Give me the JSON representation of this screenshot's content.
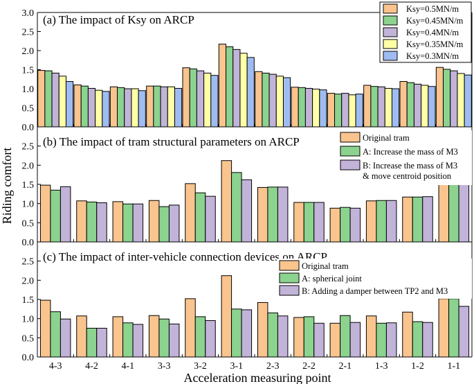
{
  "colors": {
    "orange": "#F9C48E",
    "green": "#8BD38F",
    "purple": "#C2B3D9",
    "yellow": "#FFFFA6",
    "blue": "#9FBCF2",
    "stroke": "#000000"
  },
  "chart_data": [
    {
      "type": "bar",
      "title": "(a) The impact of Ksy on ARCP",
      "categories": [
        "4-3",
        "4-2",
        "4-1",
        "3-3",
        "3-2",
        "3-1",
        "2-3",
        "2-2",
        "2-1",
        "1-3",
        "1-2",
        "1-1"
      ],
      "ylim": [
        0,
        3.0
      ],
      "yticks": [
        "0.0",
        "0.5",
        "1.0",
        "1.5",
        "2.0",
        "2.5",
        "3.0"
      ],
      "legend_position": "top-right",
      "series": [
        {
          "name": "Ksy=0.5MN/m",
          "color": "orange",
          "values": [
            1.48,
            1.1,
            1.05,
            1.07,
            1.55,
            2.17,
            1.45,
            1.04,
            0.88,
            1.09,
            1.19,
            1.56
          ]
        },
        {
          "name": "Ksy=0.45MN/m",
          "color": "green",
          "values": [
            1.47,
            1.07,
            1.03,
            1.07,
            1.52,
            2.1,
            1.41,
            1.03,
            0.86,
            1.06,
            1.16,
            1.51
          ]
        },
        {
          "name": "Ksy=0.4MN/m",
          "color": "purple",
          "values": [
            1.41,
            1.01,
            1.0,
            1.05,
            1.47,
            2.03,
            1.38,
            1.01,
            0.88,
            1.05,
            1.12,
            1.47
          ]
        },
        {
          "name": "Ksy=0.35MN/m",
          "color": "yellow",
          "values": [
            1.33,
            0.96,
            1.0,
            1.05,
            1.41,
            1.93,
            1.33,
            0.99,
            0.84,
            1.01,
            1.09,
            1.4
          ]
        },
        {
          "name": "Ksy=0.3MN/m",
          "color": "blue",
          "values": [
            1.19,
            0.93,
            0.95,
            1.01,
            1.35,
            1.82,
            1.29,
            0.97,
            0.86,
            1.0,
            1.06,
            1.36
          ]
        }
      ]
    },
    {
      "type": "bar",
      "title": "(b) The impact of  tram structural parameters on ARCP",
      "categories": [
        "4-3",
        "4-2",
        "4-1",
        "3-3",
        "3-2",
        "3-1",
        "2-3",
        "2-2",
        "2-1",
        "1-3",
        "1-2",
        "1-1"
      ],
      "ylim": [
        0,
        3.0
      ],
      "yticks": [
        "0.0",
        "0.5",
        "1.0",
        "1.5",
        "2.0",
        "2.5"
      ],
      "legend_position": "top-right",
      "series": [
        {
          "name": "Original tram",
          "label_lines": [
            "Original tram"
          ],
          "color": "orange",
          "values": [
            1.48,
            1.07,
            1.05,
            1.08,
            1.52,
            2.12,
            1.42,
            1.03,
            0.88,
            1.07,
            1.17,
            1.52
          ]
        },
        {
          "name": "A: Increase the mass of M3",
          "label_lines": [
            "A: Increase the mass of M3"
          ],
          "color": "green",
          "values": [
            1.35,
            1.04,
            0.99,
            0.92,
            1.28,
            1.81,
            1.43,
            1.03,
            0.9,
            1.08,
            1.17,
            1.52
          ]
        },
        {
          "name": "B: Increase the mass of M3 & move centroid position",
          "label_lines": [
            "B: Increase the mass of M3",
            "& move centroid position"
          ],
          "color": "purple",
          "values": [
            1.44,
            1.02,
            0.99,
            0.96,
            1.19,
            1.62,
            1.43,
            1.03,
            0.88,
            1.08,
            1.18,
            1.52
          ]
        }
      ]
    },
    {
      "type": "bar",
      "title": "(c) The impact of inter-vehicle connection devices on ARCP",
      "categories": [
        "4-3",
        "4-2",
        "4-1",
        "3-3",
        "3-2",
        "3-1",
        "2-3",
        "2-2",
        "2-1",
        "1-3",
        "1-2",
        "1-1"
      ],
      "ylim": [
        0,
        3.0
      ],
      "yticks": [
        "0.0",
        "0.5",
        "1.0",
        "1.5",
        "2.0",
        "2.5"
      ],
      "legend_position": "top-right",
      "series": [
        {
          "name": "Original tram",
          "label_lines": [
            "Original tram"
          ],
          "color": "orange",
          "values": [
            1.48,
            1.07,
            1.05,
            1.08,
            1.52,
            2.12,
            1.42,
            1.03,
            0.88,
            1.07,
            1.17,
            1.52
          ]
        },
        {
          "name": "A: spherical joint",
          "label_lines": [
            "A: spherical joint"
          ],
          "color": "green",
          "values": [
            1.18,
            0.75,
            0.89,
            0.99,
            1.05,
            1.25,
            1.15,
            1.05,
            1.08,
            0.88,
            0.92,
            1.52
          ]
        },
        {
          "name": "B: Adding a damper between TP2 and M3",
          "label_lines": [
            "B: Adding a damper between TP2 and M3"
          ],
          "color": "purple",
          "values": [
            0.99,
            0.75,
            0.85,
            0.86,
            0.95,
            1.23,
            1.07,
            0.88,
            0.9,
            0.89,
            0.9,
            1.32
          ]
        }
      ]
    }
  ],
  "xlabel": "Acceleration measuring point",
  "ylabel": "Riding comfort"
}
